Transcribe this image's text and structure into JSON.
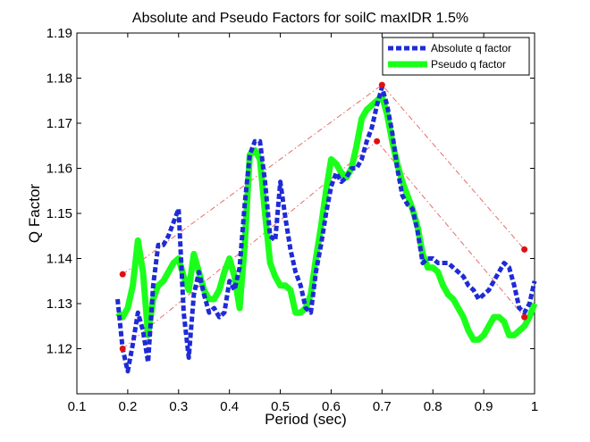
{
  "chart_data": {
    "type": "line",
    "title": "Absolute and Pseudo Factors for soilC maxIDR 1.5%",
    "xlabel": "Period (sec)",
    "ylabel": "Q Factor",
    "xlim": [
      0.1,
      1.0
    ],
    "ylim": [
      1.11,
      1.19
    ],
    "xticks": [
      "0.1",
      "0.2",
      "0.3",
      "0.4",
      "0.5",
      "0.6",
      "0.7",
      "0.8",
      "0.9",
      "1"
    ],
    "yticks": [
      "1.12",
      "1.13",
      "1.14",
      "1.15",
      "1.16",
      "1.17",
      "1.18",
      "1.19"
    ],
    "grid": false,
    "legend_position": "top-right",
    "series": [
      {
        "name": "Absolute q factor",
        "color": "#1f2bd6",
        "style": "dashed",
        "x": [
          0.18,
          0.19,
          0.2,
          0.21,
          0.22,
          0.23,
          0.24,
          0.25,
          0.26,
          0.27,
          0.28,
          0.29,
          0.3,
          0.31,
          0.32,
          0.33,
          0.34,
          0.35,
          0.36,
          0.37,
          0.38,
          0.39,
          0.4,
          0.41,
          0.42,
          0.43,
          0.44,
          0.45,
          0.46,
          0.47,
          0.48,
          0.49,
          0.5,
          0.51,
          0.52,
          0.53,
          0.54,
          0.55,
          0.56,
          0.57,
          0.58,
          0.59,
          0.6,
          0.61,
          0.62,
          0.63,
          0.64,
          0.65,
          0.66,
          0.67,
          0.68,
          0.69,
          0.7,
          0.71,
          0.72,
          0.73,
          0.74,
          0.75,
          0.76,
          0.77,
          0.78,
          0.79,
          0.8,
          0.81,
          0.82,
          0.83,
          0.84,
          0.85,
          0.86,
          0.87,
          0.88,
          0.89,
          0.9,
          0.91,
          0.92,
          0.93,
          0.94,
          0.95,
          0.96,
          0.97,
          0.98,
          0.99,
          1.0
        ],
        "y": [
          1.131,
          1.12,
          1.115,
          1.121,
          1.128,
          1.124,
          1.117,
          1.134,
          1.143,
          1.143,
          1.145,
          1.148,
          1.151,
          1.128,
          1.118,
          1.132,
          1.137,
          1.132,
          1.128,
          1.129,
          1.127,
          1.128,
          1.135,
          1.133,
          1.138,
          1.152,
          1.163,
          1.166,
          1.166,
          1.157,
          1.145,
          1.144,
          1.157,
          1.149,
          1.142,
          1.137,
          1.134,
          1.129,
          1.128,
          1.137,
          1.143,
          1.15,
          1.156,
          1.159,
          1.157,
          1.158,
          1.16,
          1.16,
          1.162,
          1.166,
          1.169,
          1.174,
          1.178,
          1.174,
          1.168,
          1.16,
          1.154,
          1.152,
          1.151,
          1.146,
          1.139,
          1.14,
          1.14,
          1.139,
          1.139,
          1.139,
          1.138,
          1.137,
          1.136,
          1.134,
          1.133,
          1.131,
          1.132,
          1.133,
          1.135,
          1.137,
          1.139,
          1.138,
          1.134,
          1.129,
          1.128,
          1.13,
          1.135
        ]
      },
      {
        "name": "Pseudo q factor",
        "color": "#1bff1b",
        "style": "solid",
        "x": [
          0.18,
          0.19,
          0.2,
          0.21,
          0.22,
          0.23,
          0.24,
          0.25,
          0.26,
          0.27,
          0.28,
          0.29,
          0.3,
          0.31,
          0.32,
          0.33,
          0.34,
          0.35,
          0.36,
          0.37,
          0.38,
          0.39,
          0.4,
          0.41,
          0.42,
          0.43,
          0.44,
          0.45,
          0.46,
          0.47,
          0.48,
          0.49,
          0.5,
          0.51,
          0.52,
          0.53,
          0.54,
          0.55,
          0.56,
          0.57,
          0.58,
          0.59,
          0.6,
          0.61,
          0.62,
          0.63,
          0.64,
          0.65,
          0.66,
          0.67,
          0.68,
          0.69,
          0.7,
          0.71,
          0.72,
          0.73,
          0.74,
          0.75,
          0.76,
          0.77,
          0.78,
          0.79,
          0.8,
          0.81,
          0.82,
          0.83,
          0.84,
          0.85,
          0.86,
          0.87,
          0.88,
          0.89,
          0.9,
          0.91,
          0.92,
          0.93,
          0.94,
          0.95,
          0.96,
          0.97,
          0.98,
          0.99,
          1.0
        ],
        "y": [
          1.128,
          1.127,
          1.129,
          1.134,
          1.144,
          1.137,
          1.123,
          1.131,
          1.134,
          1.135,
          1.137,
          1.139,
          1.14,
          1.136,
          1.133,
          1.141,
          1.137,
          1.133,
          1.131,
          1.131,
          1.133,
          1.137,
          1.14,
          1.136,
          1.129,
          1.143,
          1.163,
          1.164,
          1.162,
          1.15,
          1.139,
          1.136,
          1.134,
          1.134,
          1.133,
          1.128,
          1.128,
          1.129,
          1.132,
          1.14,
          1.147,
          1.155,
          1.162,
          1.161,
          1.159,
          1.158,
          1.16,
          1.165,
          1.171,
          1.173,
          1.174,
          1.175,
          1.176,
          1.172,
          1.166,
          1.161,
          1.157,
          1.154,
          1.151,
          1.147,
          1.141,
          1.138,
          1.138,
          1.137,
          1.134,
          1.132,
          1.131,
          1.129,
          1.127,
          1.124,
          1.122,
          1.122,
          1.123,
          1.125,
          1.127,
          1.127,
          1.126,
          1.123,
          1.123,
          1.124,
          1.125,
          1.127,
          1.13
        ]
      }
    ],
    "overlay_lines": [
      {
        "color": "#e86a6a",
        "points": [
          [
            0.19,
            1.1365
          ],
          [
            0.7,
            1.1785
          ],
          [
            0.98,
            1.142
          ]
        ]
      },
      {
        "color": "#e86a6a",
        "points": [
          [
            0.19,
            1.12
          ],
          [
            0.69,
            1.166
          ],
          [
            0.98,
            1.127
          ]
        ]
      }
    ],
    "markers": [
      {
        "color": "#e01010",
        "x": 0.19,
        "y": 1.1365
      },
      {
        "color": "#e01010",
        "x": 0.19,
        "y": 1.12
      },
      {
        "color": "#e01010",
        "x": 0.7,
        "y": 1.1785
      },
      {
        "color": "#e01010",
        "x": 0.69,
        "y": 1.166
      },
      {
        "color": "#e01010",
        "x": 0.98,
        "y": 1.142
      },
      {
        "color": "#e01010",
        "x": 0.98,
        "y": 1.127
      }
    ]
  }
}
